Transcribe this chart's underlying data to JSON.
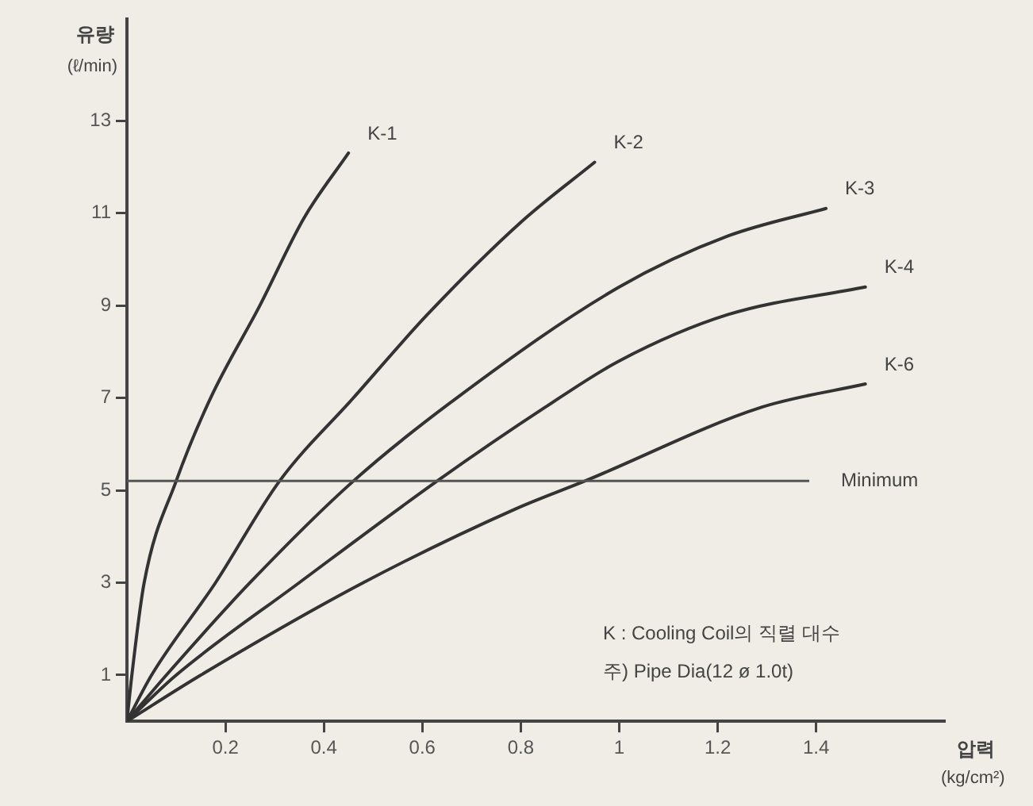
{
  "chart_data": {
    "type": "line",
    "xlabel": "압력 (kg/cm²)",
    "ylabel": "유량 (ℓ/min)",
    "xlim": [
      0,
      1.66
    ],
    "ylim": [
      0,
      15.2
    ],
    "xticks": [
      0.2,
      0.4,
      0.6,
      0.8,
      1.0,
      1.2,
      1.4
    ],
    "yticks": [
      1,
      3,
      5,
      7,
      9,
      11,
      13
    ],
    "grid": false,
    "legend": false,
    "marker": "none",
    "line_style": "solid",
    "series": [
      {
        "name": "K-1",
        "color": "#333333",
        "x": [
          0,
          0.01,
          0.035,
          0.1,
          0.17,
          0.27,
          0.36,
          0.45
        ],
        "values": [
          0,
          1,
          3,
          5.2,
          7,
          9,
          10.9,
          12.3
        ]
      },
      {
        "name": "K-2",
        "color": "#333333",
        "x": [
          0,
          0.05,
          0.18,
          0.31,
          0.46,
          0.61,
          0.8,
          0.95
        ],
        "values": [
          0,
          1,
          3,
          5.2,
          7,
          8.8,
          10.8,
          12.1
        ]
      },
      {
        "name": "K-3",
        "color": "#333333",
        "x": [
          0,
          0.08,
          0.25,
          0.46,
          0.67,
          1.0,
          1.22,
          1.42
        ],
        "values": [
          0,
          1,
          3,
          5.2,
          7,
          9.4,
          10.5,
          11.1
        ]
      },
      {
        "name": "K-4",
        "color": "#333333",
        "x": [
          0,
          0.1,
          0.35,
          0.63,
          0.85,
          1.0,
          1.22,
          1.5
        ],
        "values": [
          0,
          1,
          3,
          5.2,
          6.8,
          7.8,
          8.8,
          9.4
        ]
      },
      {
        "name": "K-6",
        "color": "#333333",
        "x": [
          0,
          0.15,
          0.48,
          0.79,
          0.93,
          1.29,
          1.5
        ],
        "values": [
          0,
          1,
          3,
          4.6,
          5.2,
          6.8,
          7.3
        ]
      }
    ],
    "ref_lines": [
      {
        "axis": "y",
        "value": 5.2,
        "label": "Minimum",
        "color": "#555555"
      }
    ],
    "annotations": [
      "K : Cooling Coil의 직렬 대수",
      "주) Pipe Dia(12 ø 1.0t)"
    ]
  }
}
